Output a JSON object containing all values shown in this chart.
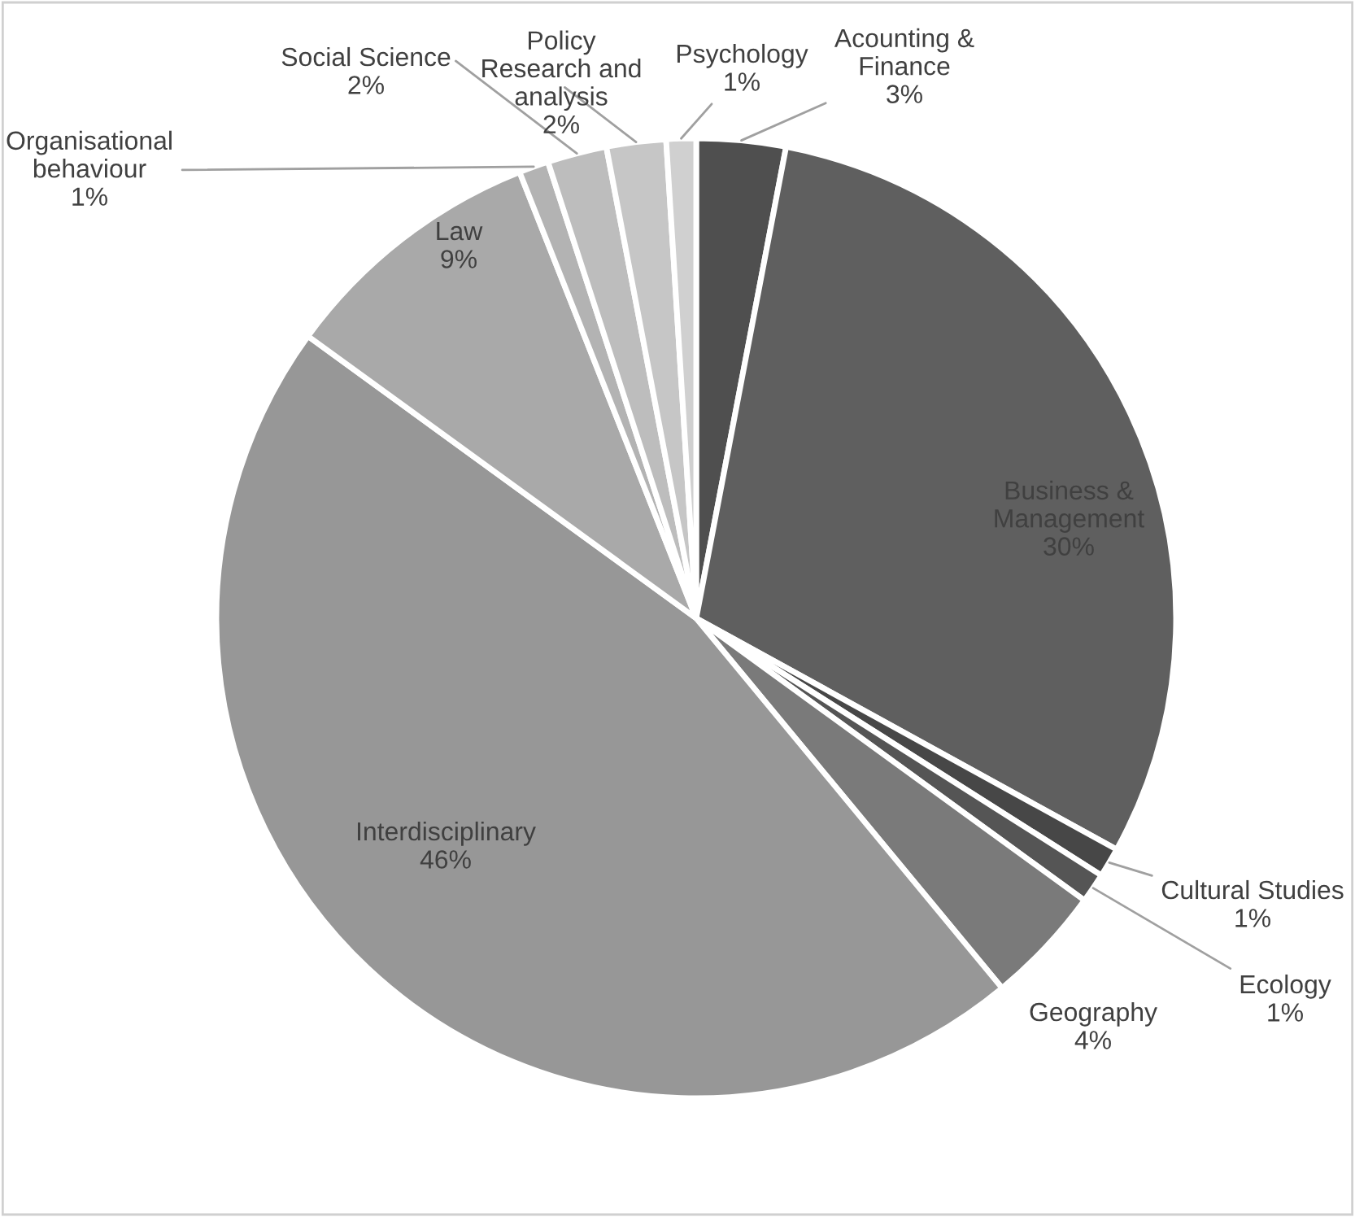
{
  "chart_data": {
    "type": "pie",
    "categories": [
      "Acounting &\nFinance",
      "Business &\nManagement",
      "Cultural Studies",
      "Ecology",
      "Geography",
      "Interdisciplinary",
      "Law",
      "Organisational\nbehaviour",
      "Social Science",
      "Policy\nResearch and\nanalysis",
      "Psychology"
    ],
    "values": [
      3,
      30,
      1,
      1,
      4,
      46,
      9,
      1,
      2,
      2,
      1
    ],
    "value_labels": [
      "3%",
      "30%",
      "1%",
      "1%",
      "4%",
      "46%",
      "9%",
      "1%",
      "2%",
      "2%",
      "1%"
    ],
    "colors": [
      "#4f4f4f",
      "#5f5f5f",
      "#474747",
      "#555555",
      "#7a7a7a",
      "#979797",
      "#a9a9a9",
      "#b3b3b3",
      "#bdbdbd",
      "#c6c6c6",
      "#d0d0d0"
    ]
  }
}
